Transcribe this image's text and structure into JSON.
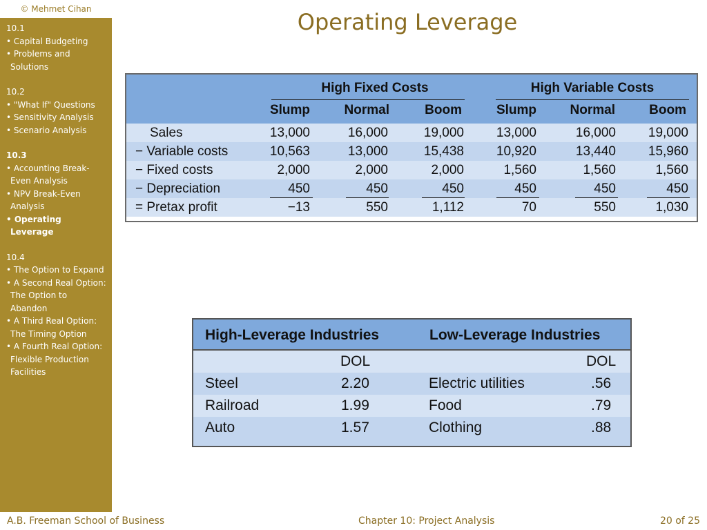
{
  "copyright": "© Mehmet Cihan",
  "title": "Operating Leverage",
  "sidebar": [
    {
      "num": "10.1",
      "items": [
        "• Capital Budgeting",
        "• Problems and Solutions"
      ]
    },
    {
      "num": "10.2",
      "items": [
        "• \"What If\" Questions",
        "• Sensitivity Analysis",
        "• Scenario Analysis"
      ]
    },
    {
      "num": "10.3",
      "items": [
        "• Accounting Break-Even Analysis",
        "• NPV Break-Even Analysis",
        "• Operating Leverage"
      ]
    },
    {
      "num": "10.4",
      "items": [
        "• The Option to Expand",
        "• A Second Real Option: The Option to Abandon",
        "• A Third Real Option: The Timing Option",
        "• A Fourth Real Option: Flexible Production Facilities"
      ]
    }
  ],
  "table1": {
    "group_headers": [
      "High Fixed Costs",
      "High Variable Costs"
    ],
    "sub_headers": [
      "Slump",
      "Normal",
      "Boom",
      "Slump",
      "Normal",
      "Boom"
    ],
    "rows": [
      {
        "label": "Sales",
        "values": [
          "13,000",
          "16,000",
          "19,000",
          "13,000",
          "16,000",
          "19,000"
        ]
      },
      {
        "label": "− Variable costs",
        "values": [
          "10,563",
          "13,000",
          "15,438",
          "10,920",
          "13,440",
          "15,960"
        ]
      },
      {
        "label": "− Fixed costs",
        "values": [
          "2,000",
          "2,000",
          "2,000",
          "1,560",
          "1,560",
          "1,560"
        ]
      },
      {
        "label": "− Depreciation",
        "values": [
          "450",
          "450",
          "450",
          "450",
          "450",
          "450"
        ]
      },
      {
        "label": "= Pretax profit",
        "values": [
          "−13",
          "550",
          "1,112",
          "70",
          "550",
          "1,030"
        ]
      }
    ]
  },
  "table2": {
    "headers": [
      "High-Leverage Industries",
      "Low-Leverage Industries"
    ],
    "dol_label": "DOL",
    "rows": [
      {
        "high_industry": "Steel",
        "high_dol": "2.20",
        "low_industry": "Electric utilities",
        "low_dol": ".56"
      },
      {
        "high_industry": "Railroad",
        "high_dol": "1.99",
        "low_industry": "Food",
        "low_dol": ".79"
      },
      {
        "high_industry": "Auto",
        "high_dol": "1.57",
        "low_industry": "Clothing",
        "low_dol": ".88"
      }
    ]
  },
  "footer": {
    "left": "A.B. Freeman School of Business",
    "center": "Chapter 10: Project Analysis",
    "right": "20 of 25"
  }
}
